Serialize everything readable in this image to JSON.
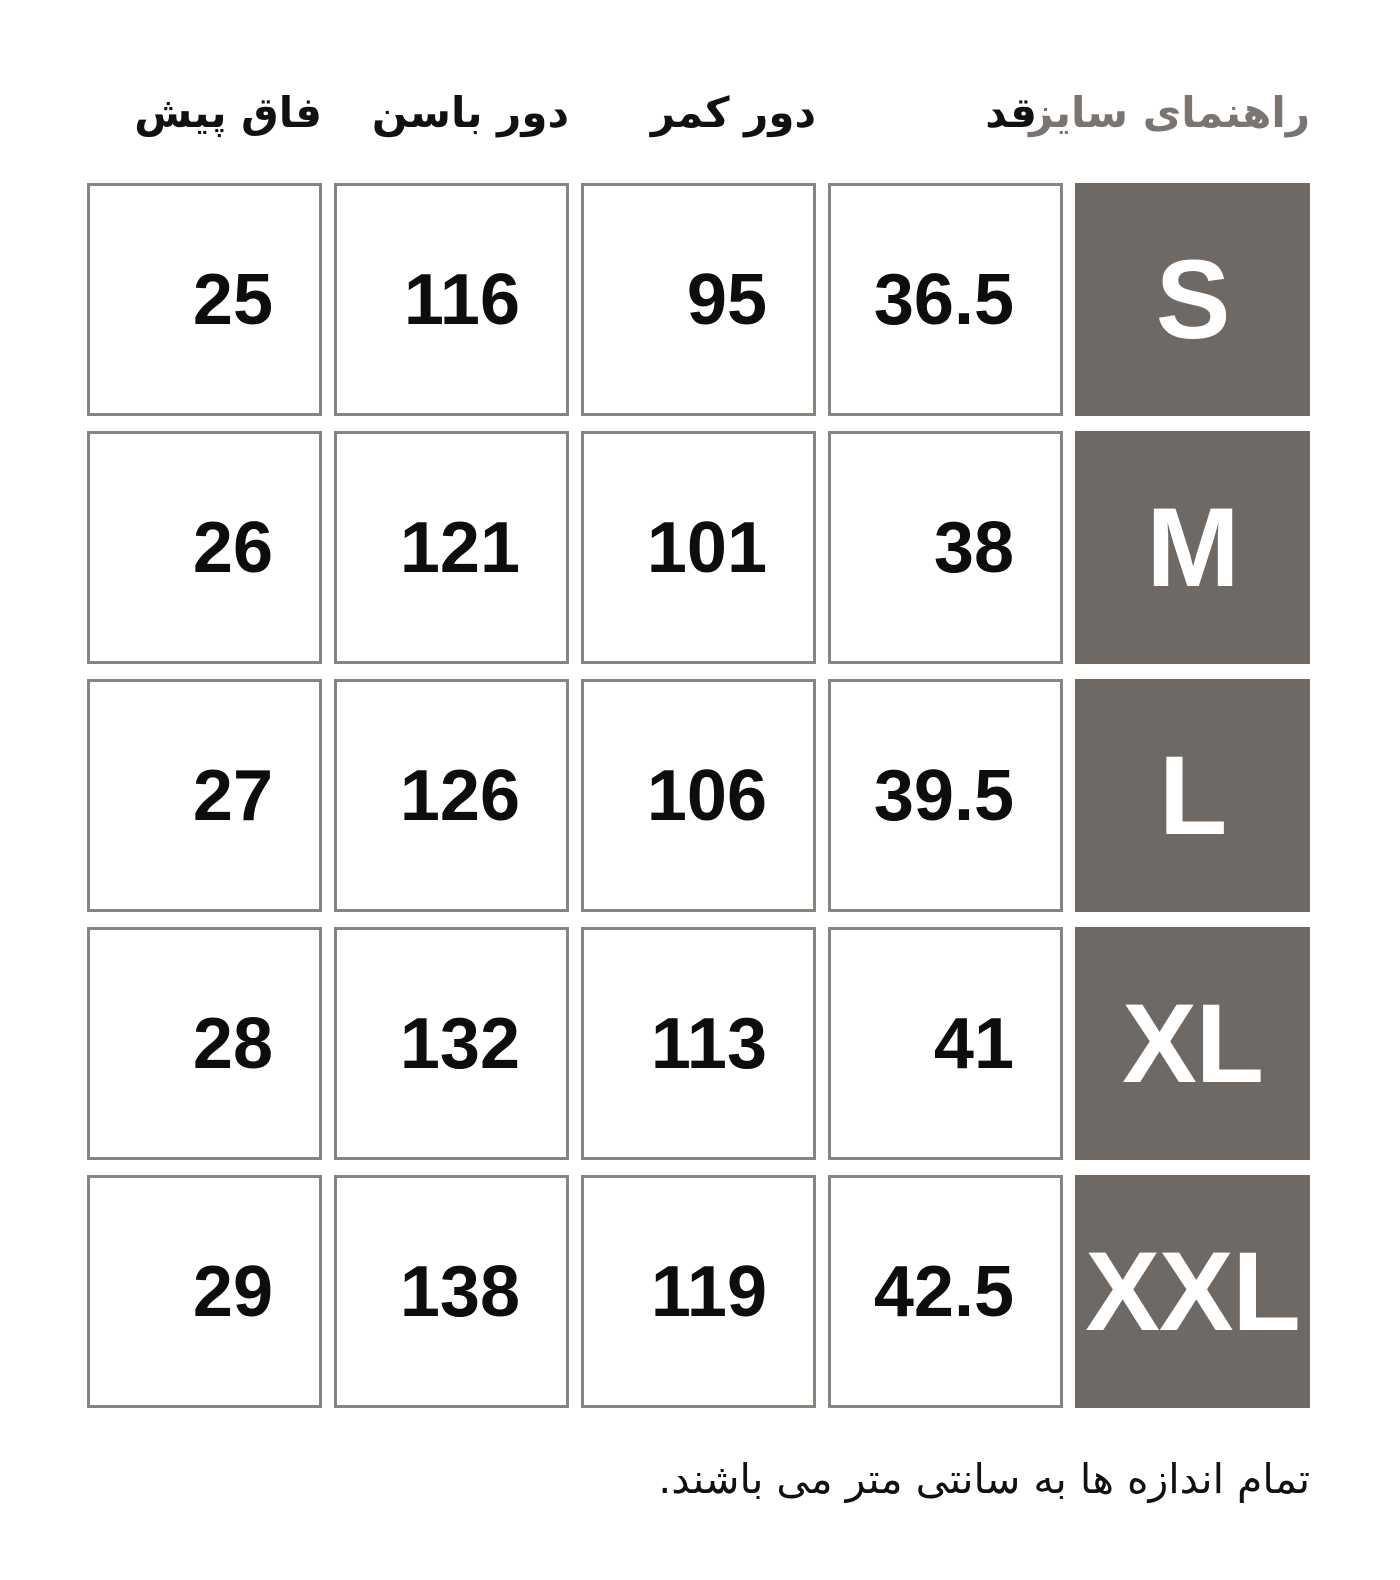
{
  "title": "راهنمای سایز",
  "table": {
    "columns": [
      {
        "key": "size",
        "label": "راهنمای سایز"
      },
      {
        "key": "qad",
        "label": "قد"
      },
      {
        "key": "kamar",
        "label": "دور کمر"
      },
      {
        "key": "basan",
        "label": "دور باسن"
      },
      {
        "key": "fagh",
        "label": "فاق پیش"
      }
    ],
    "rows": [
      {
        "size": "S",
        "qad": "36.5",
        "kamar": "95",
        "basan": "116",
        "fagh": "25"
      },
      {
        "size": "M",
        "qad": "38",
        "kamar": "101",
        "basan": "121",
        "fagh": "26"
      },
      {
        "size": "L",
        "qad": "39.5",
        "kamar": "106",
        "basan": "126",
        "fagh": "27"
      },
      {
        "size": "XL",
        "qad": "41",
        "kamar": "113",
        "basan": "132",
        "fagh": "28"
      },
      {
        "size": "XXL",
        "qad": "42.5",
        "kamar": "119",
        "basan": "138",
        "fagh": "29"
      }
    ]
  },
  "footnote": "تمام اندازه ها به سانتی متر می باشند.",
  "colors": {
    "size_badge_bg": "#6f6965",
    "size_badge_text": "#ffffff",
    "cell_border": "#89837f",
    "header_accent": "#7b7470",
    "text": "#0d0d0d",
    "background": "#ffffff"
  }
}
